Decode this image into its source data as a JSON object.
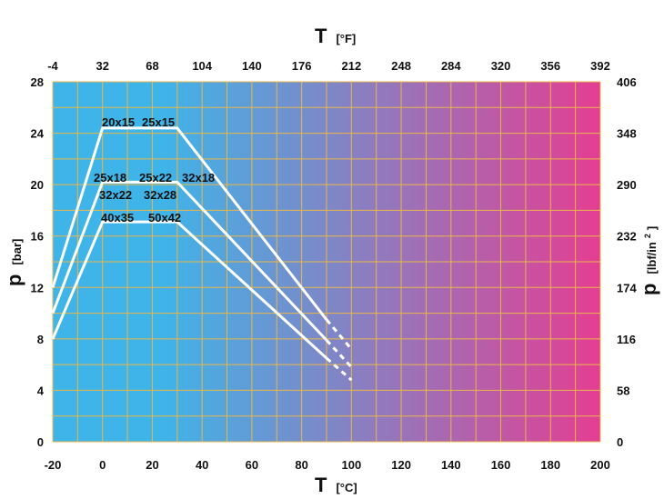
{
  "chart_data": {
    "type": "line",
    "colors": {
      "gradient_start": "#3fb4e8",
      "gradient_end": "#e43e92",
      "grid": "#e9b64a",
      "curve": "#ffffff"
    },
    "x_axis_bottom": {
      "symbol": "T",
      "unit": "[°C]",
      "range": [
        -20,
        200
      ],
      "ticks": [
        -20,
        0,
        20,
        40,
        60,
        80,
        100,
        120,
        140,
        160,
        180,
        200
      ]
    },
    "x_axis_top": {
      "symbol": "T",
      "unit": "[°F]",
      "ticks": [
        "-4",
        "32",
        "68",
        "104",
        "140",
        "176",
        "212",
        "248",
        "284",
        "320",
        "356",
        "392"
      ]
    },
    "y_axis_left": {
      "symbol": "p",
      "unit": "[bar]",
      "range": [
        0,
        28
      ],
      "ticks": [
        0,
        4,
        8,
        12,
        16,
        20,
        24,
        28
      ]
    },
    "y_axis_right": {
      "symbol": "p",
      "unit": "[lbf/in",
      "unit_sup": "2",
      "unit_close": "]",
      "ticks": [
        "0",
        "58",
        "116",
        "174",
        "232",
        "290",
        "348",
        "406"
      ]
    },
    "grid": true,
    "series": [
      {
        "name": "20x15 25x15",
        "labels": [
          "20x15",
          "25x15"
        ],
        "points": [
          [
            -20,
            12
          ],
          [
            0,
            24.4
          ],
          [
            30,
            24.4
          ],
          [
            90,
            9.5
          ]
        ],
        "extension": [
          [
            90,
            9.5
          ],
          [
            100,
            7.2
          ]
        ]
      },
      {
        "name": "25x18 25x22 32x18 32x22 32x28",
        "labels": [
          "25x18",
          "25x22",
          "32x18",
          "32x22",
          "32x28"
        ],
        "points": [
          [
            -20,
            10
          ],
          [
            0,
            20.2
          ],
          [
            30,
            20.2
          ],
          [
            90,
            7.9
          ]
        ],
        "extension": [
          [
            90,
            7.9
          ],
          [
            100,
            5.8
          ]
        ]
      },
      {
        "name": "40x35 50x42",
        "labels": [
          "40x35",
          "50x42"
        ],
        "points": [
          [
            -20,
            8
          ],
          [
            0,
            17.1
          ],
          [
            30,
            17.1
          ],
          [
            90,
            6.5
          ]
        ],
        "extension": [
          [
            90,
            6.5
          ],
          [
            100,
            4.8
          ]
        ]
      }
    ]
  }
}
